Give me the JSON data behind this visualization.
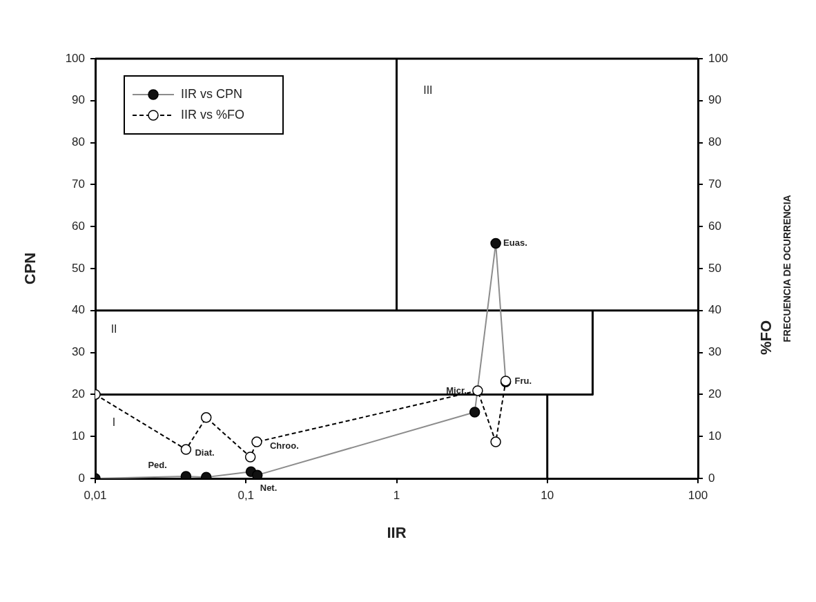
{
  "chart_data": {
    "type": "scatter",
    "xlabel": "IIR",
    "ylabel": "CPN",
    "y2label": "%FO",
    "log": "x",
    "xlim": [
      0.01,
      100
    ],
    "xticks": [
      {
        "value": 0.01,
        "label": "0,01"
      },
      {
        "value": 0.1,
        "label": "0,1"
      },
      1,
      10,
      100
    ],
    "ylim": [
      0,
      100
    ],
    "yticks": [
      0,
      10,
      20,
      30,
      40,
      50,
      60,
      70,
      80,
      90,
      100
    ],
    "y2lim": [
      0,
      100
    ],
    "y2ticks": [
      0,
      10,
      20,
      30,
      40,
      50,
      60,
      70,
      80,
      90,
      100
    ],
    "grid": false,
    "legend": "top left",
    "series": [
      {
        "type": "line",
        "color": "#000000",
        "marker": "none",
        "line_style": "solid",
        "x": [
          0.01,
          100
        ],
        "values": [
          40,
          40
        ]
      },
      {
        "type": "line",
        "color": "#000000",
        "marker": "none",
        "line_style": "solid",
        "x": [
          1,
          1
        ],
        "values": [
          40,
          100
        ]
      },
      {
        "type": "line",
        "color": "#000000",
        "marker": "none",
        "line_style": "solid",
        "x": [
          0.01,
          20,
          20
        ],
        "values": [
          20,
          20,
          40
        ]
      },
      {
        "type": "line",
        "color": "#000000",
        "marker": "none",
        "line_style": "solid",
        "x": [
          10,
          10
        ],
        "values": [
          0,
          20
        ]
      },
      {
        "name": "IIR vs CPN",
        "type": "line",
        "color": "#8c8c8c",
        "marker": "circle",
        "line_style": "solid",
        "x": [
          0.01,
          0.04,
          0.0545,
          0.108,
          0.119,
          3.3,
          4.55,
          5.3
        ],
        "values": [
          0,
          0.5,
          0.3,
          1.6,
          0.8,
          15.8,
          56,
          23
        ]
      },
      {
        "name": "IIR vs %FO",
        "type": "line",
        "axis": "y2",
        "color": "#000000",
        "marker": "circle",
        "line_style": "dashed",
        "x": [
          0.01,
          0.04,
          0.0545,
          0.107,
          0.118,
          3.45,
          4.55,
          5.3
        ],
        "values": [
          20,
          6.9,
          14.5,
          5.1,
          8.7,
          20.9,
          8.7,
          23.2
        ]
      }
    ],
    "annotations": [
      "I",
      "II",
      "III",
      {
        "text": "Ped.",
        "x": 0.04,
        "y": 0.5
      },
      {
        "text": "Diat.",
        "x": 0.04,
        "y": 6.9
      },
      {
        "text": "Chroo.",
        "x": 0.118,
        "y": 8.7
      },
      {
        "text": "Net.",
        "x": 0.119,
        "y": 0.8
      },
      {
        "text": "Micr.",
        "x": 3.45,
        "y": 20.9
      },
      {
        "text": "Euas.",
        "x": 4.55,
        "y": 56
      },
      {
        "text": "Fru.",
        "x": 5.3,
        "y": 23.2
      },
      "FRECUENCIA DE OCURRENCIA"
    ]
  }
}
